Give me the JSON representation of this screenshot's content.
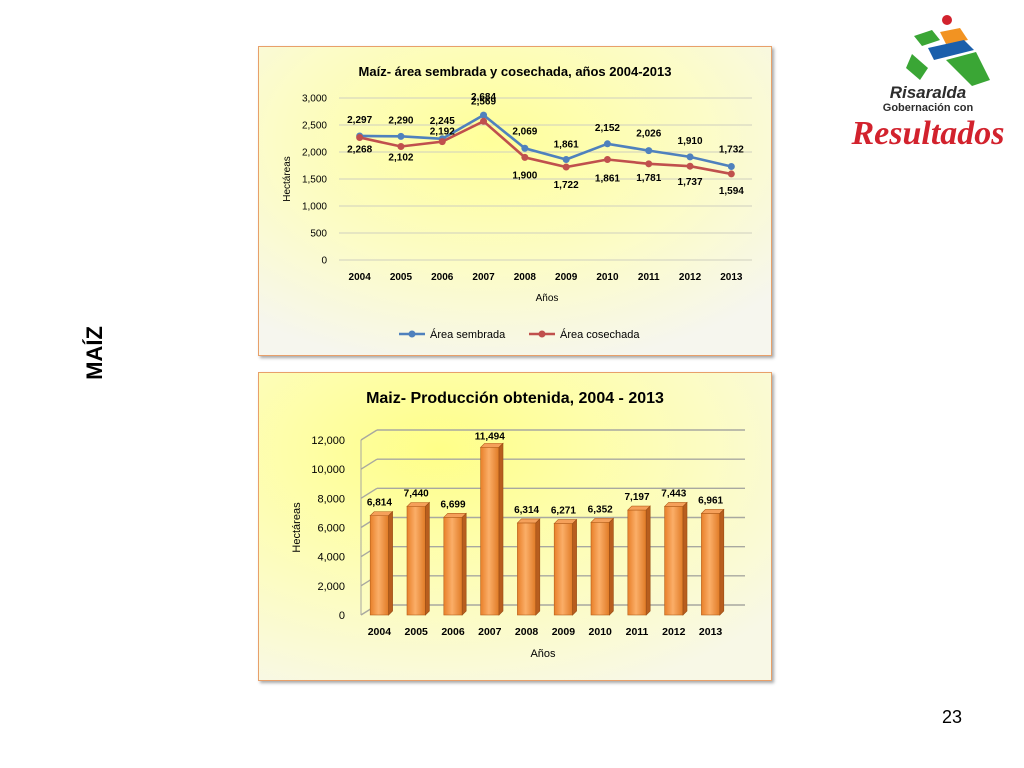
{
  "slide": {
    "side_label": "MAÍZ",
    "page_number": "23"
  },
  "logo": {
    "line1": "Risaralda",
    "line2": "Gobernación con",
    "line3": "Resultados",
    "colors": {
      "green": "#3aa635",
      "blue": "#1a5fab",
      "orange": "#f29322",
      "red": "#d2222d",
      "dark": "#2d2d2d"
    }
  },
  "chart_data": [
    {
      "type": "line",
      "title": "Maíz- área sembrada y cosechada, años 2004-2013",
      "xlabel": "Años",
      "ylabel": "Hectáreas",
      "categories": [
        "2004",
        "2005",
        "2006",
        "2007",
        "2008",
        "2009",
        "2010",
        "2011",
        "2012",
        "2013"
      ],
      "ylim": [
        0,
        3000
      ],
      "yticks": [
        0,
        500,
        1000,
        1500,
        2000,
        2500,
        3000
      ],
      "ytick_labels": [
        "0",
        "500",
        "1,000",
        "1,500",
        "2,000",
        "2,500",
        "3,000"
      ],
      "grid": true,
      "legend_position": "bottom",
      "series": [
        {
          "name": "Área sembrada",
          "color": "#4f81bd",
          "values": [
            2297,
            2290,
            2245,
            2684,
            2069,
            1861,
            2152,
            2026,
            1910,
            1732
          ],
          "labels": [
            "2,297",
            "2,290",
            "2,245",
            "2,684",
            "2,069",
            "1,861",
            "2,152",
            "2,026",
            "1,910",
            "1,732"
          ]
        },
        {
          "name": "Área cosechada",
          "color": "#c0504d",
          "values": [
            2268,
            2102,
            2192,
            2569,
            1900,
            1722,
            1861,
            1781,
            1737,
            1594
          ],
          "labels": [
            "2,268",
            "2,102",
            "2,192",
            "2,569",
            "1,900",
            "1,722",
            "1,861",
            "1,781",
            "1,737",
            "1,594"
          ]
        }
      ]
    },
    {
      "type": "bar",
      "title": "Maiz- Producción obtenida, 2004 - 2013",
      "xlabel": "Años",
      "ylabel": "Hectáreas",
      "categories": [
        "2004",
        "2005",
        "2006",
        "2007",
        "2008",
        "2009",
        "2010",
        "2011",
        "2012",
        "2013"
      ],
      "values": [
        6814,
        7440,
        6699,
        11494,
        6314,
        6271,
        6352,
        7197,
        7443,
        6961
      ],
      "labels": [
        "6,814",
        "7,440",
        "6,699",
        "11,494",
        "6,314",
        "6,271",
        "6,352",
        "7,197",
        "7,443",
        "6,961"
      ],
      "ylim": [
        0,
        12000
      ],
      "yticks": [
        0,
        2000,
        4000,
        6000,
        8000,
        10000,
        12000
      ],
      "ytick_labels": [
        "0",
        "2,000",
        "4,000",
        "6,000",
        "8,000",
        "10,000",
        "12,000"
      ],
      "grid": true,
      "bar_color": "#f79646"
    }
  ]
}
